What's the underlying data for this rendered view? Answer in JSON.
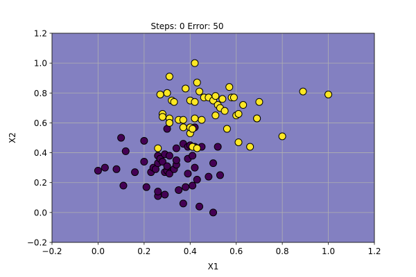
{
  "chart_data": {
    "type": "scatter",
    "title": "Steps: 0  Error: 50",
    "xlabel": "X1",
    "ylabel": "X2",
    "xlim": [
      -0.2,
      1.2
    ],
    "ylim": [
      -0.2,
      1.2
    ],
    "xticks": [
      -0.2,
      0.0,
      0.2,
      0.4,
      0.6,
      0.8,
      1.0,
      1.2
    ],
    "yticks": [
      -0.2,
      0.0,
      0.2,
      0.4,
      0.6,
      0.8,
      1.0,
      1.2
    ],
    "xtick_labels": [
      "−0.2",
      "0.0",
      "0.2",
      "0.4",
      "0.6",
      "0.8",
      "1.0",
      "1.2"
    ],
    "ytick_labels": [
      "−0.2",
      "0.0",
      "0.2",
      "0.4",
      "0.6",
      "0.8",
      "1.0",
      "1.2"
    ],
    "grid": true,
    "background_color": "#8380c1",
    "series": [
      {
        "color": "#440154",
        "points": [
          [
            0.0,
            0.28
          ],
          [
            0.03,
            0.3
          ],
          [
            0.08,
            0.29
          ],
          [
            0.1,
            0.5
          ],
          [
            0.11,
            0.18
          ],
          [
            0.12,
            0.41
          ],
          [
            0.16,
            0.27
          ],
          [
            0.2,
            0.48
          ],
          [
            0.2,
            0.34
          ],
          [
            0.21,
            0.17
          ],
          [
            0.23,
            0.27
          ],
          [
            0.24,
            0.3
          ],
          [
            0.25,
            0.29
          ],
          [
            0.26,
            0.38
          ],
          [
            0.26,
            0.11
          ],
          [
            0.26,
            0.14
          ],
          [
            0.26,
            0.33
          ],
          [
            0.27,
            0.36
          ],
          [
            0.28,
            0.34
          ],
          [
            0.29,
            0.39
          ],
          [
            0.29,
            0.27
          ],
          [
            0.29,
            0.12
          ],
          [
            0.3,
            0.28
          ],
          [
            0.3,
            0.31
          ],
          [
            0.31,
            0.38
          ],
          [
            0.31,
            0.26
          ],
          [
            0.3,
            0.56
          ],
          [
            0.33,
            0.29
          ],
          [
            0.34,
            0.32
          ],
          [
            0.34,
            0.35
          ],
          [
            0.34,
            0.43
          ],
          [
            0.35,
            0.15
          ],
          [
            0.37,
            0.46
          ],
          [
            0.37,
            0.06
          ],
          [
            0.38,
            0.17
          ],
          [
            0.39,
            0.44
          ],
          [
            0.39,
            0.36
          ],
          [
            0.39,
            0.26
          ],
          [
            0.4,
            0.45
          ],
          [
            0.41,
            0.38
          ],
          [
            0.41,
            0.18
          ],
          [
            0.42,
            0.44
          ],
          [
            0.42,
            0.3
          ],
          [
            0.42,
            0.57
          ],
          [
            0.43,
            0.22
          ],
          [
            0.44,
            0.04
          ],
          [
            0.45,
            0.44
          ],
          [
            0.48,
            0.24
          ],
          [
            0.5,
            0.33
          ],
          [
            0.5,
            0.0
          ],
          [
            0.52,
            0.44
          ],
          [
            0.53,
            0.25
          ]
        ]
      },
      {
        "color": "#fde725",
        "points": [
          [
            0.26,
            0.43
          ],
          [
            0.27,
            0.79
          ],
          [
            0.28,
            0.66
          ],
          [
            0.28,
            0.64
          ],
          [
            0.3,
            0.8
          ],
          [
            0.31,
            0.91
          ],
          [
            0.31,
            0.63
          ],
          [
            0.31,
            0.6
          ],
          [
            0.32,
            0.75
          ],
          [
            0.33,
            0.74
          ],
          [
            0.35,
            0.62
          ],
          [
            0.37,
            0.62
          ],
          [
            0.37,
            0.57
          ],
          [
            0.38,
            0.83
          ],
          [
            0.4,
            0.75
          ],
          [
            0.4,
            0.53
          ],
          [
            0.4,
            0.57
          ],
          [
            0.41,
            0.44
          ],
          [
            0.41,
            0.56
          ],
          [
            0.42,
            0.63
          ],
          [
            0.42,
            0.74
          ],
          [
            0.42,
            1.0
          ],
          [
            0.43,
            0.43
          ],
          [
            0.43,
            0.87
          ],
          [
            0.44,
            0.81
          ],
          [
            0.45,
            0.62
          ],
          [
            0.46,
            0.77
          ],
          [
            0.48,
            0.77
          ],
          [
            0.5,
            0.75
          ],
          [
            0.51,
            0.78
          ],
          [
            0.51,
            0.65
          ],
          [
            0.52,
            0.72
          ],
          [
            0.53,
            0.7
          ],
          [
            0.54,
            0.76
          ],
          [
            0.55,
            0.68
          ],
          [
            0.56,
            0.56
          ],
          [
            0.57,
            0.84
          ],
          [
            0.58,
            0.77
          ],
          [
            0.59,
            0.77
          ],
          [
            0.6,
            0.65
          ],
          [
            0.61,
            0.47
          ],
          [
            0.61,
            0.66
          ],
          [
            0.63,
            0.72
          ],
          [
            0.66,
            0.44
          ],
          [
            0.69,
            0.63
          ],
          [
            0.69,
            0.63
          ],
          [
            0.7,
            0.74
          ],
          [
            0.8,
            0.51
          ],
          [
            0.89,
            0.81
          ],
          [
            1.0,
            0.79
          ]
        ]
      }
    ]
  }
}
